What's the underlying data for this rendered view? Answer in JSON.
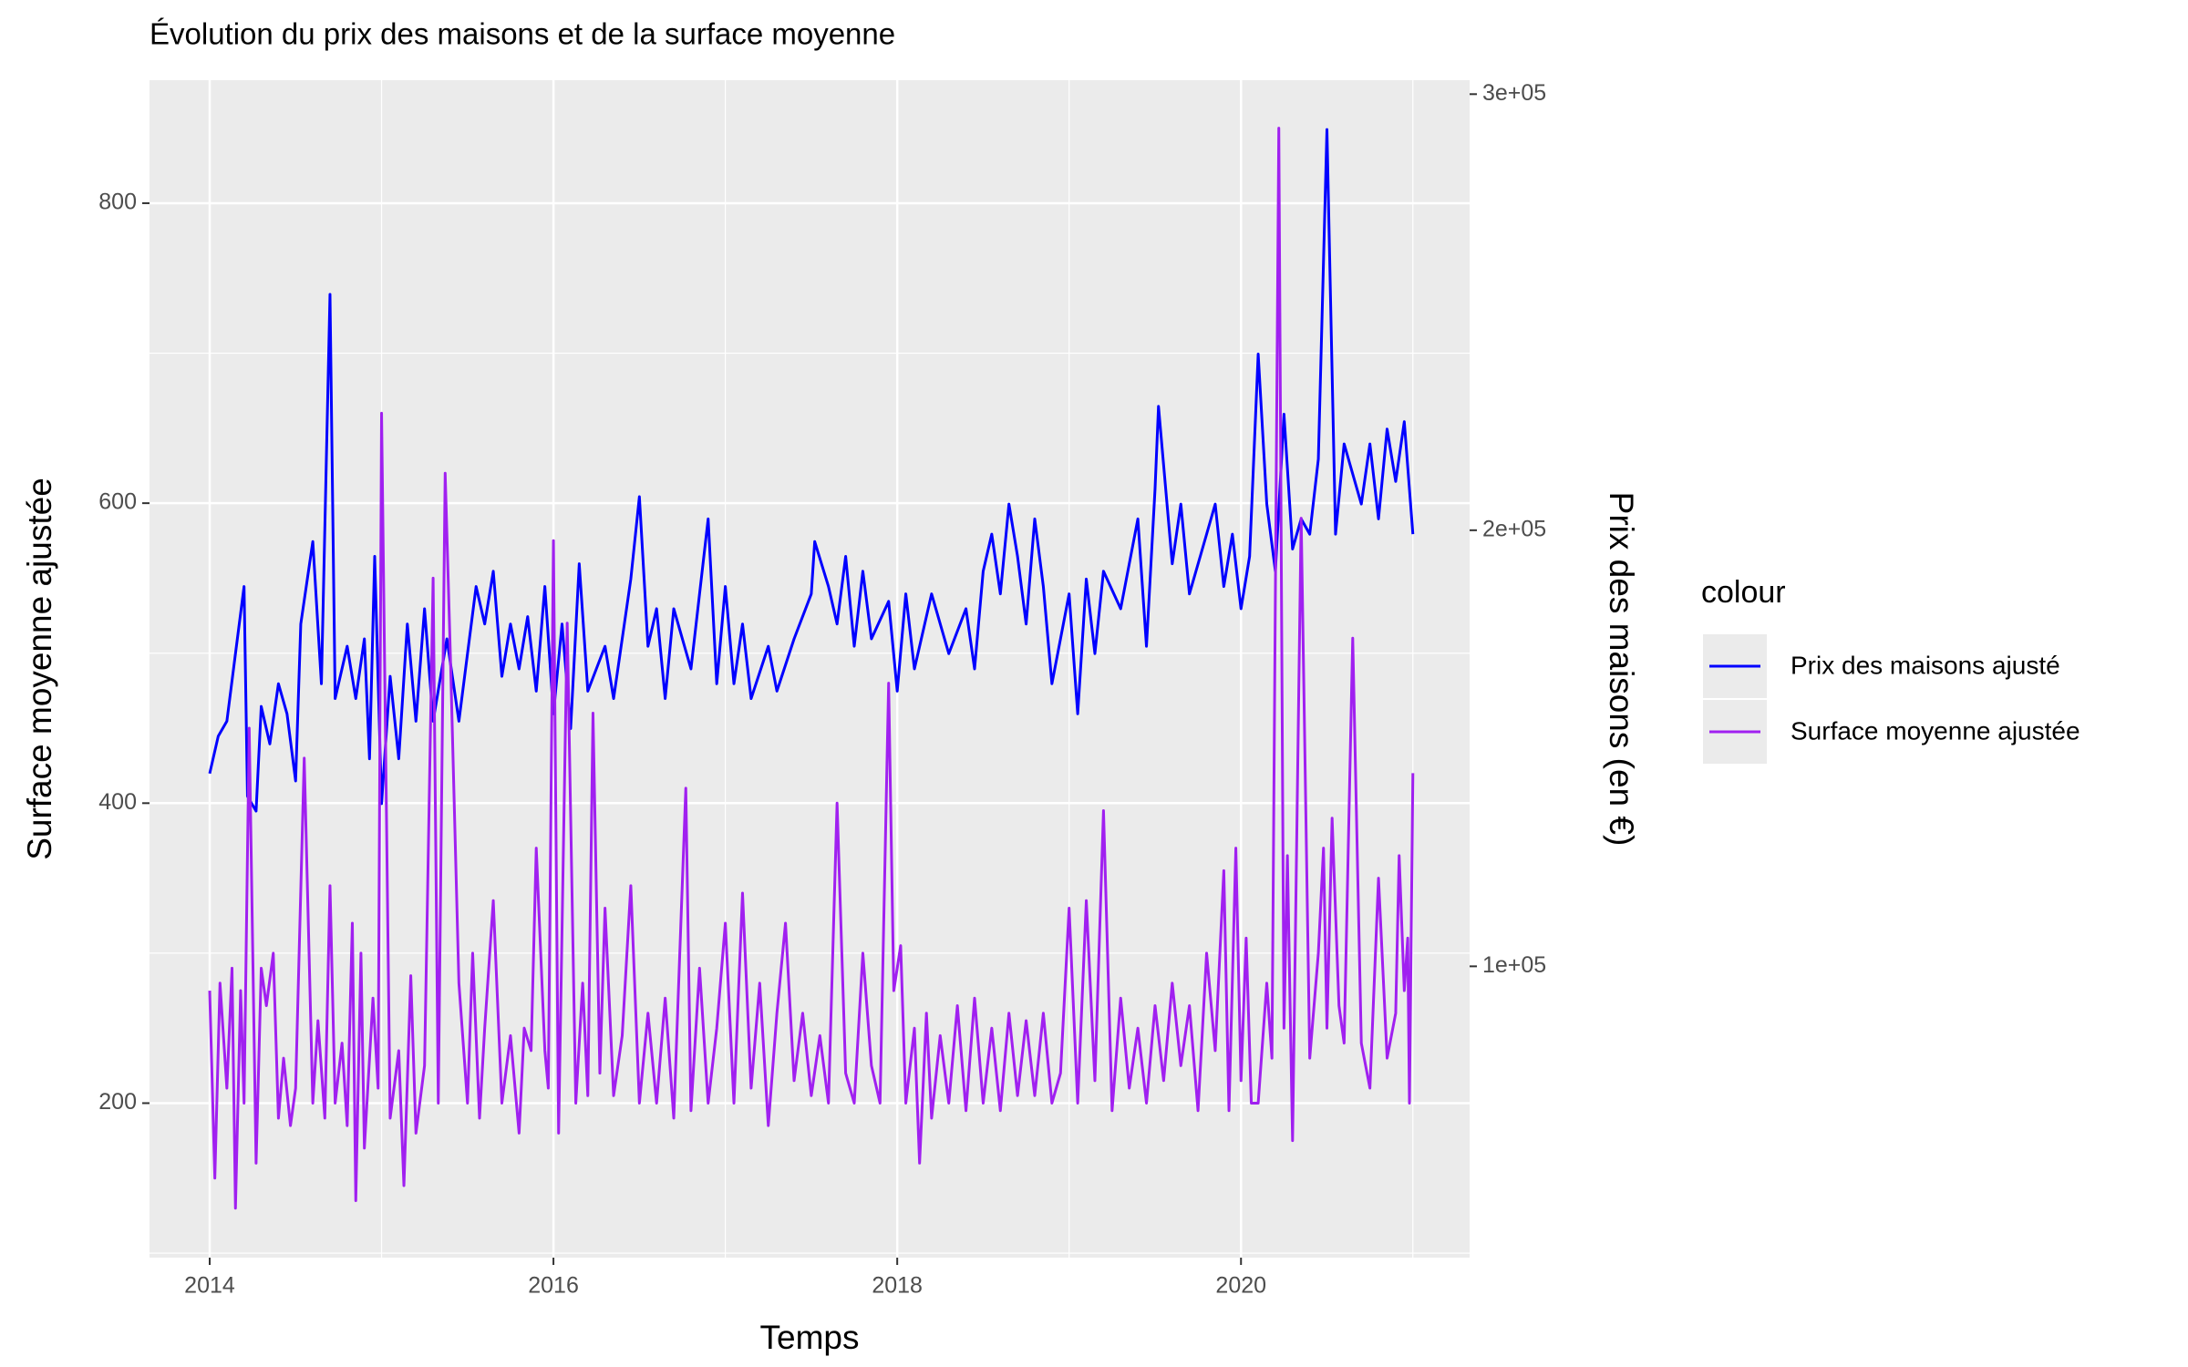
{
  "chart_data": {
    "type": "line",
    "title": "Évolution du prix des maisons et de la surface moyenne",
    "x_label": "Temps",
    "y_label": "Surface moyenne ajustée",
    "y2_label": "Prix des maisons (en €)",
    "legend_title": "colour",
    "legend_position": "right",
    "grid": true,
    "xlim": [
      2013.65,
      2021.33
    ],
    "xticks": [
      2014,
      2016,
      2018,
      2020
    ],
    "ylim": [
      97,
      882
    ],
    "yticks": [
      200,
      400,
      600,
      800
    ],
    "y2lim": [
      33200,
      303200
    ],
    "y2ticks": [
      {
        "value": 100000,
        "label": "1e+05"
      },
      {
        "value": 200000,
        "label": "2e+05"
      },
      {
        "value": 300000,
        "label": "3e+05"
      }
    ],
    "series": [
      {
        "name": "Prix des maisons ajusté",
        "color": "#0000ff",
        "axis": "y2",
        "x": [
          2014,
          2014.05,
          2014.1,
          2014.15,
          2014.2,
          2014.22,
          2014.27,
          2014.3,
          2014.35,
          2014.4,
          2014.45,
          2014.5,
          2014.53,
          2014.6,
          2014.65,
          2014.7,
          2014.73,
          2014.8,
          2014.85,
          2014.9,
          2014.93,
          2014.96,
          2015,
          2015.05,
          2015.1,
          2015.15,
          2015.2,
          2015.25,
          2015.3,
          2015.38,
          2015.45,
          2015.5,
          2015.55,
          2015.6,
          2015.65,
          2015.7,
          2015.75,
          2015.8,
          2015.85,
          2015.9,
          2015.95,
          2016,
          2016.05,
          2016.1,
          2016.15,
          2016.2,
          2016.3,
          2016.35,
          2016.45,
          2016.5,
          2016.55,
          2016.6,
          2016.65,
          2016.7,
          2016.8,
          2016.9,
          2016.95,
          2017,
          2017.05,
          2017.1,
          2017.15,
          2017.25,
          2017.3,
          2017.4,
          2017.5,
          2017.52,
          2017.6,
          2017.65,
          2017.7,
          2017.75,
          2017.8,
          2017.85,
          2017.95,
          2018,
          2018.05,
          2018.1,
          2018.2,
          2018.3,
          2018.4,
          2018.45,
          2018.5,
          2018.55,
          2018.6,
          2018.65,
          2018.7,
          2018.75,
          2018.8,
          2018.85,
          2018.9,
          2019,
          2019.05,
          2019.1,
          2019.15,
          2019.2,
          2019.3,
          2019.4,
          2019.45,
          2019.5,
          2019.52,
          2019.6,
          2019.65,
          2019.7,
          2019.8,
          2019.85,
          2019.9,
          2019.95,
          2020,
          2020.05,
          2020.1,
          2020.15,
          2020.2,
          2020.25,
          2020.3,
          2020.35,
          2020.4,
          2020.45,
          2020.5,
          2020.55,
          2020.6,
          2020.7,
          2020.75,
          2020.8,
          2020.85,
          2020.9,
          2020.95,
          2021
        ],
        "values": [
          144200,
          152800,
          156200,
          171700,
          187100,
          139000,
          135600,
          159600,
          151000,
          164800,
          157900,
          142500,
          178500,
          197400,
          164800,
          254100,
          161400,
          173400,
          161400,
          175100,
          147600,
          194000,
          137300,
          166500,
          147600,
          178500,
          156200,
          182000,
          156200,
          175100,
          156200,
          171700,
          187100,
          178500,
          190600,
          166500,
          178500,
          168200,
          180200,
          163100,
          187100,
          157900,
          178500,
          154500,
          192300,
          163100,
          173400,
          161400,
          188800,
          207700,
          173400,
          182000,
          161400,
          182000,
          168200,
          202600,
          164800,
          187100,
          164800,
          178500,
          161400,
          173400,
          163100,
          175100,
          185400,
          197400,
          187100,
          178500,
          194000,
          173400,
          190600,
          175100,
          183700,
          163100,
          185400,
          168200,
          185400,
          171700,
          182000,
          168200,
          190600,
          199100,
          185400,
          206000,
          194000,
          178500,
          202600,
          187100,
          164800,
          185400,
          157900,
          188800,
          171700,
          190600,
          182000,
          202600,
          173400,
          209500,
          228400,
          192300,
          206000,
          185400,
          199100,
          206000,
          187100,
          199100,
          182000,
          194000,
          240400,
          206000,
          190600,
          226600,
          195700,
          202600,
          199100,
          216300,
          291900,
          199100,
          219800,
          206000,
          219800,
          202600,
          223200,
          211200,
          224900,
          199100
        ]
      },
      {
        "name": "Surface moyenne ajustée",
        "color": "#a020f0",
        "axis": "y",
        "x": [
          2014,
          2014.03,
          2014.06,
          2014.1,
          2014.13,
          2014.15,
          2014.18,
          2014.2,
          2014.23,
          2014.27,
          2014.3,
          2014.33,
          2014.37,
          2014.4,
          2014.43,
          2014.47,
          2014.5,
          2014.55,
          2014.6,
          2014.63,
          2014.67,
          2014.7,
          2014.73,
          2014.77,
          2014.8,
          2014.83,
          2014.85,
          2014.88,
          2014.9,
          2014.95,
          2014.98,
          2015,
          2015.05,
          2015.1,
          2015.13,
          2015.17,
          2015.2,
          2015.25,
          2015.3,
          2015.33,
          2015.37,
          2015.4,
          2015.45,
          2015.5,
          2015.53,
          2015.57,
          2015.6,
          2015.65,
          2015.7,
          2015.75,
          2015.8,
          2015.83,
          2015.87,
          2015.9,
          2015.95,
          2015.97,
          2016,
          2016.03,
          2016.08,
          2016.13,
          2016.17,
          2016.2,
          2016.23,
          2016.27,
          2016.3,
          2016.35,
          2016.4,
          2016.45,
          2016.5,
          2016.55,
          2016.6,
          2016.65,
          2016.7,
          2016.77,
          2016.8,
          2016.85,
          2016.9,
          2016.95,
          2017,
          2017.05,
          2017.1,
          2017.15,
          2017.2,
          2017.25,
          2017.3,
          2017.35,
          2017.4,
          2017.45,
          2017.5,
          2017.55,
          2017.6,
          2017.65,
          2017.7,
          2017.75,
          2017.8,
          2017.85,
          2017.9,
          2017.95,
          2017.98,
          2018.02,
          2018.05,
          2018.1,
          2018.13,
          2018.17,
          2018.2,
          2018.25,
          2018.3,
          2018.35,
          2018.4,
          2018.45,
          2018.5,
          2018.55,
          2018.6,
          2018.65,
          2018.7,
          2018.75,
          2018.8,
          2018.85,
          2018.9,
          2018.95,
          2019,
          2019.05,
          2019.1,
          2019.15,
          2019.2,
          2019.25,
          2019.3,
          2019.35,
          2019.4,
          2019.45,
          2019.5,
          2019.55,
          2019.6,
          2019.65,
          2019.7,
          2019.75,
          2019.8,
          2019.85,
          2019.9,
          2019.93,
          2019.97,
          2020,
          2020.03,
          2020.06,
          2020.1,
          2020.15,
          2020.18,
          2020.22,
          2020.25,
          2020.27,
          2020.3,
          2020.35,
          2020.4,
          2020.45,
          2020.48,
          2020.5,
          2020.53,
          2020.57,
          2020.6,
          2020.65,
          2020.7,
          2020.75,
          2020.8,
          2020.85,
          2020.9,
          2020.92,
          2020.95,
          2020.97,
          2020.98,
          2021
        ],
        "values": [
          275,
          150,
          280,
          210,
          290,
          130,
          275,
          200,
          450,
          160,
          290,
          265,
          300,
          190,
          230,
          185,
          210,
          430,
          200,
          255,
          190,
          345,
          200,
          240,
          185,
          320,
          135,
          300,
          170,
          270,
          210,
          660,
          190,
          235,
          145,
          285,
          180,
          225,
          550,
          200,
          620,
          500,
          280,
          200,
          300,
          190,
          250,
          335,
          200,
          245,
          180,
          250,
          235,
          370,
          235,
          210,
          575,
          180,
          520,
          200,
          280,
          205,
          460,
          220,
          330,
          205,
          245,
          345,
          200,
          260,
          200,
          270,
          190,
          410,
          195,
          290,
          200,
          250,
          320,
          200,
          340,
          210,
          280,
          185,
          260,
          320,
          215,
          260,
          205,
          245,
          200,
          400,
          220,
          200,
          300,
          225,
          200,
          480,
          275,
          305,
          200,
          250,
          160,
          260,
          190,
          245,
          200,
          265,
          195,
          270,
          200,
          250,
          195,
          260,
          205,
          255,
          205,
          260,
          200,
          220,
          330,
          200,
          335,
          215,
          395,
          195,
          270,
          210,
          250,
          200,
          265,
          215,
          280,
          225,
          265,
          195,
          300,
          235,
          355,
          195,
          370,
          215,
          310,
          200,
          200,
          280,
          230,
          850,
          250,
          365,
          175,
          590,
          230,
          300,
          370,
          250,
          390,
          265,
          240,
          510,
          240,
          210,
          350,
          230,
          260,
          365,
          275,
          310,
          200,
          420
        ]
      }
    ]
  }
}
